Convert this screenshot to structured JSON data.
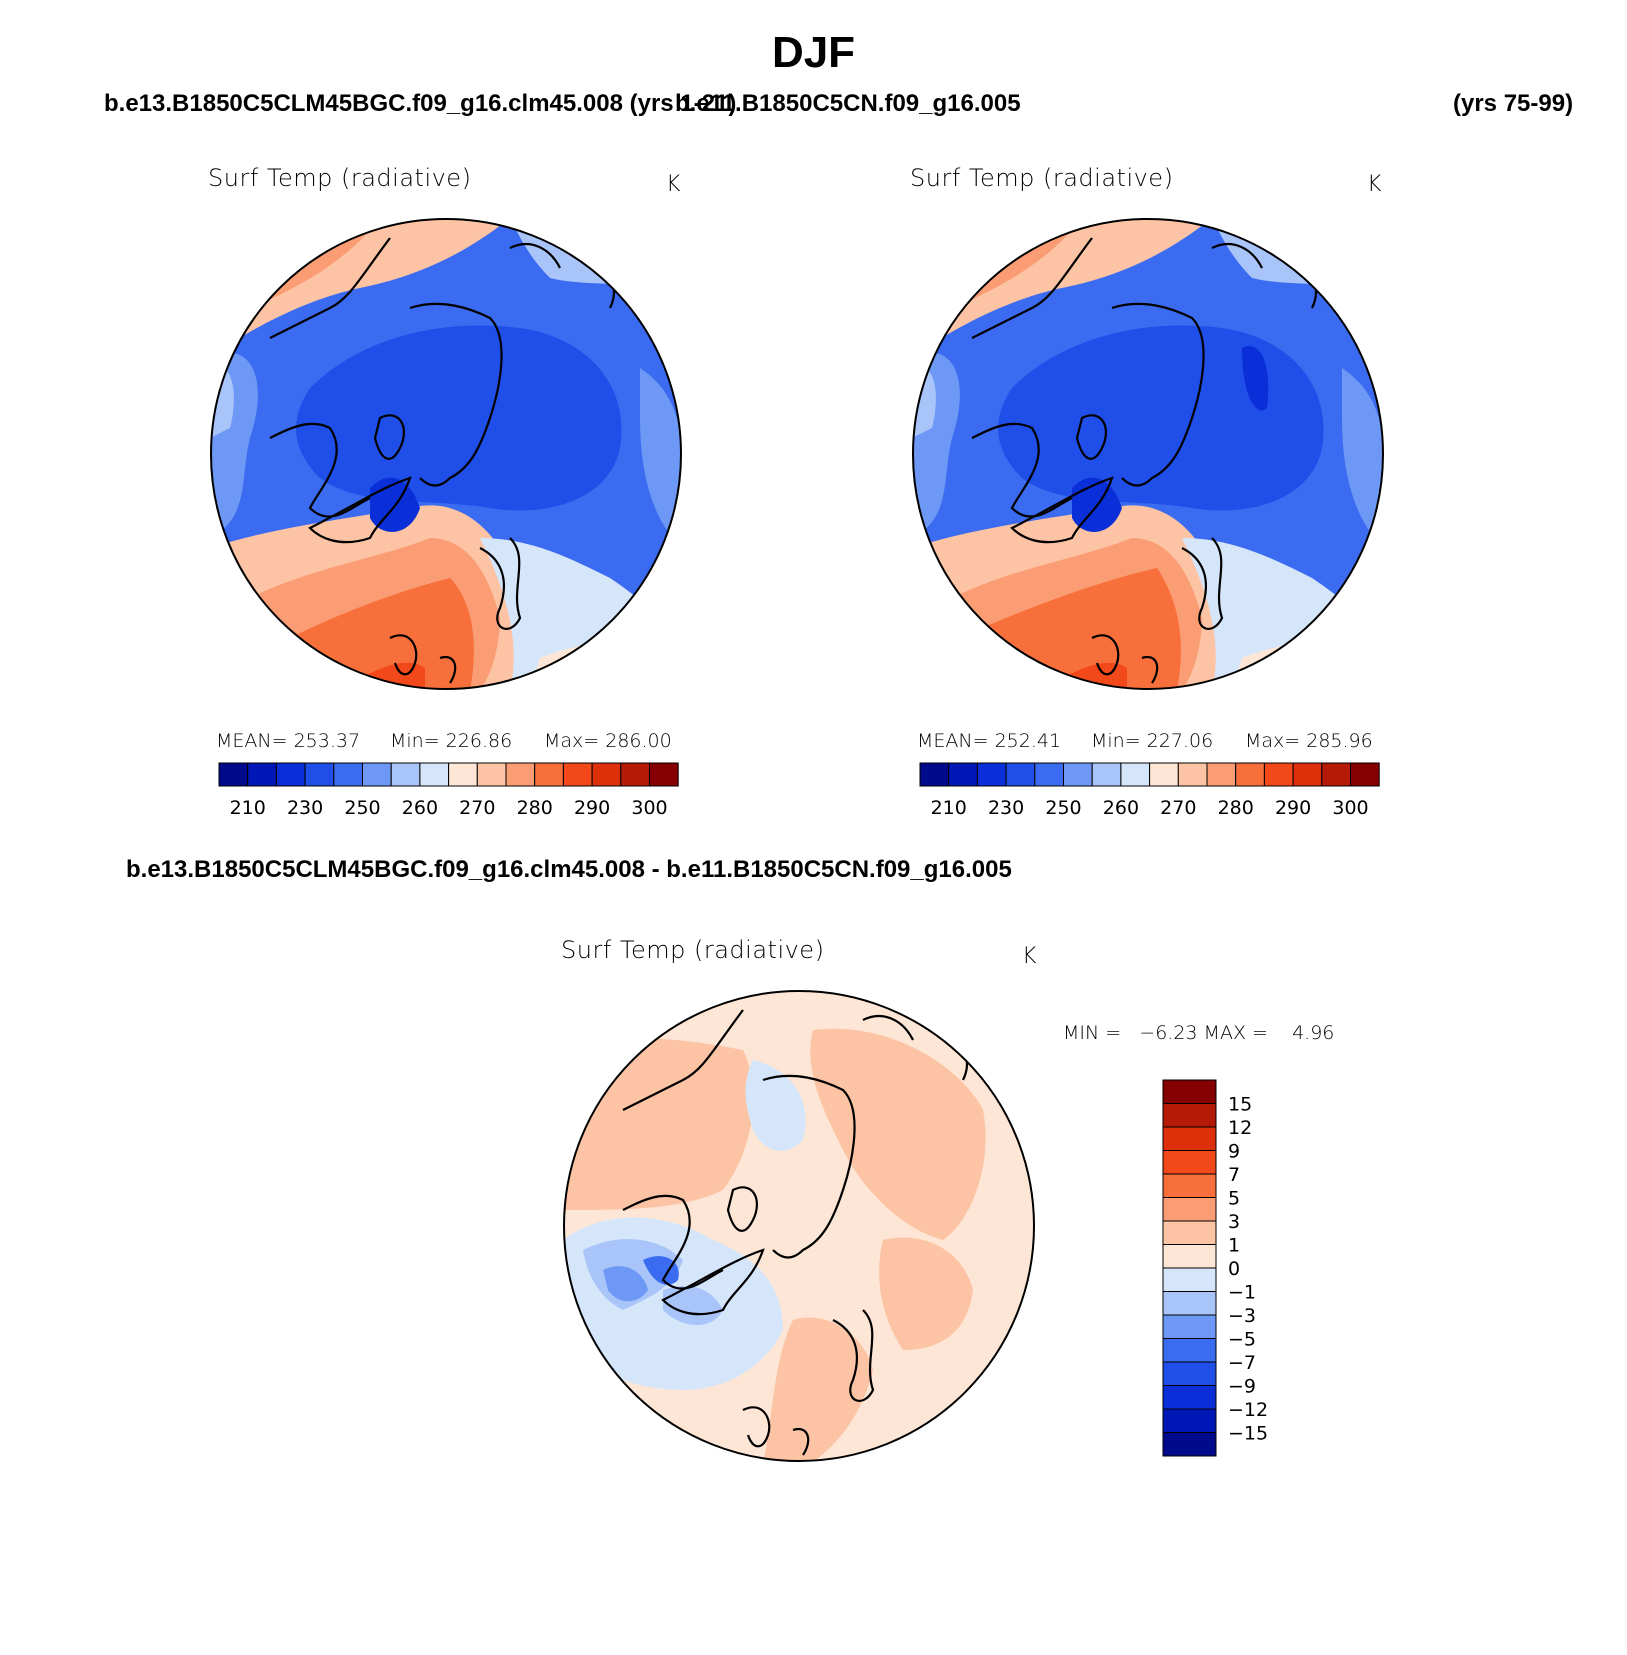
{
  "figure": {
    "title": "DJF",
    "case1": "b.e13.B1850C5CLM45BGC.f09_g16.clm45.008 (yrs 1-21)",
    "case2": "b.e11.B1850C5CN.f09_g16.005",
    "case2_years": "(yrs 75-99)",
    "diff_title": "b.e13.B1850C5CLM45BGC.f09_g16.clm45.008 - b.e11.B1850C5CN.f09_g16.005"
  },
  "panels": [
    {
      "title": "Surf Temp (radiative)",
      "units": "K",
      "mean": "MEAN= 253.37",
      "min": "Min= 226.86",
      "max": "Max= 286.00"
    },
    {
      "title": "Surf Temp (radiative)",
      "units": "K",
      "mean": "MEAN= 252.41",
      "min": "Min= 227.06",
      "max": "Max= 285.96"
    },
    {
      "title": "Surf Temp (radiative)",
      "units": "K",
      "minmax": "MIN =   −6.23 MAX =    4.96"
    }
  ],
  "colorbar_abs": {
    "colors": [
      "#000a8a",
      "#0017b8",
      "#0a2fd8",
      "#1f4fe8",
      "#3a6bf0",
      "#6e98f5",
      "#a8c4f8",
      "#d5e6fb",
      "#fde6d5",
      "#fcc4a4",
      "#fb9d74",
      "#f7703c",
      "#f2481a",
      "#dc2f0a",
      "#b41a05",
      "#850000"
    ],
    "tick_labels": [
      "210",
      "230",
      "250",
      "260",
      "270",
      "280",
      "290",
      "300"
    ]
  },
  "colorbar_diff": {
    "colors": [
      "#850000",
      "#b41a05",
      "#dc2f0a",
      "#f2481a",
      "#f7703c",
      "#fb9d74",
      "#fcc4a4",
      "#fde6d5",
      "#d5e6fb",
      "#a8c4f8",
      "#6e98f5",
      "#3a6bf0",
      "#1f4fe8",
      "#0a2fd8",
      "#0017b8",
      "#000a8a"
    ],
    "tick_labels": [
      "15",
      "12",
      "9",
      "7",
      "5",
      "3",
      "1",
      "0",
      "−1",
      "−3",
      "−5",
      "−7",
      "−9",
      "−12",
      "−15"
    ]
  }
}
